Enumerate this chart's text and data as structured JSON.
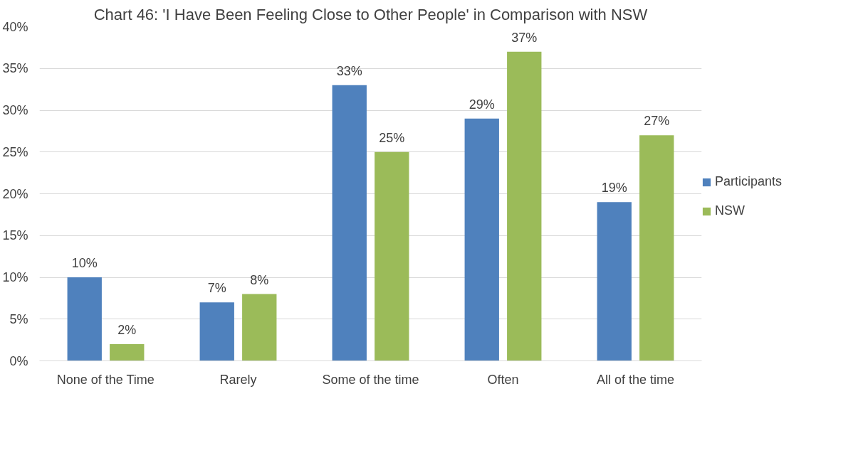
{
  "chart_data": {
    "type": "bar",
    "title": "Chart 46: 'I Have Been Feeling Close to Other People' in Comparison with NSW",
    "categories": [
      "None of the Time",
      "Rarely",
      "Some of the time",
      "Often",
      "All of the time"
    ],
    "series": [
      {
        "name": "Participants",
        "color": "#4f81bd",
        "values": [
          10,
          7,
          33,
          29,
          19
        ],
        "value_labels": [
          "10%",
          "7%",
          "33%",
          "29%",
          "19%"
        ]
      },
      {
        "name": "NSW",
        "color": "#9bbb59",
        "values": [
          2,
          8,
          25,
          37,
          27
        ],
        "value_labels": [
          "2%",
          "8%",
          "25%",
          "37%",
          "27%"
        ]
      }
    ],
    "ylim": [
      0,
      40
    ],
    "yticks": [
      {
        "value": 0,
        "label": "0%"
      },
      {
        "value": 5,
        "label": "5%"
      },
      {
        "value": 10,
        "label": "10%"
      },
      {
        "value": 15,
        "label": "15%"
      },
      {
        "value": 20,
        "label": "20%"
      },
      {
        "value": 25,
        "label": "25%"
      },
      {
        "value": 30,
        "label": "30%"
      },
      {
        "value": 35,
        "label": "35%"
      },
      {
        "value": 40,
        "label": "40%"
      }
    ],
    "grid": "y",
    "legend": "right"
  }
}
